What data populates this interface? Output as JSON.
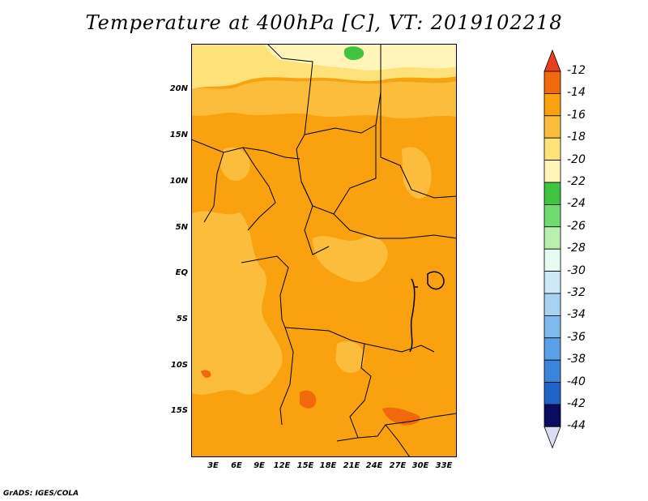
{
  "title": "Temperature at 400hPa [C], VT: 2019102218",
  "credit": "GrADS: IGES/COLA",
  "map": {
    "variable": "Temperature",
    "level": "400hPa",
    "units": "C",
    "valid_time": "2019102218",
    "region": "Central Africa",
    "lat_labels": [
      "20N",
      "15N",
      "10N",
      "5N",
      "EQ",
      "5S",
      "10S",
      "15S"
    ],
    "lon_labels": [
      "3E",
      "6E",
      "9E",
      "12E",
      "15E",
      "18E",
      "21E",
      "24E",
      "27E",
      "30E",
      "33E"
    ],
    "dominant_range": "-16 to -14",
    "colors": {
      "c_-14_-12": "#f06a0c",
      "c_-16_-14": "#f9a10e",
      "c_-18_-16": "#fbbd3b",
      "c_-20_-18": "#fde27a",
      "c_-22_-20": "#fff5b9",
      "c_-24_-22": "#3fc43f",
      "border": "#000000"
    }
  },
  "colorbar": {
    "labels": [
      "-12",
      "-14",
      "-16",
      "-18",
      "-20",
      "-22",
      "-24",
      "-26",
      "-28",
      "-30",
      "-32",
      "-34",
      "-36",
      "-38",
      "-40",
      "-42",
      "-44"
    ],
    "colors": [
      "#f06a0c",
      "#f9a10e",
      "#fbbd3b",
      "#fde27a",
      "#fff5b9",
      "#3fc43f",
      "#6fdc6f",
      "#b8f0b0",
      "#e6fbf2",
      "#cde8f7",
      "#a8d2f2",
      "#7ebaee",
      "#5aa0e6",
      "#3a84dc",
      "#1e64c8",
      "#0a3aa0"
    ],
    "top_color": "#e8401c",
    "bottom_color": "#dcdcf5",
    "end_top_color": "#0b0b5f"
  }
}
